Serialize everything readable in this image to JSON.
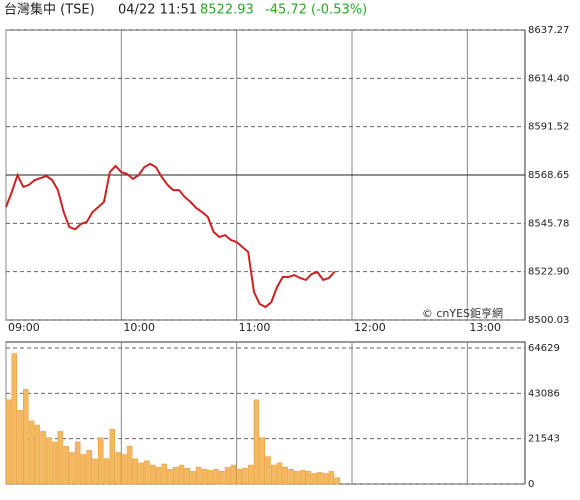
{
  "header": {
    "name": "台灣集中 (TSE)",
    "time": "04/22 11:51",
    "price": "8522.93",
    "change": "-45.72 (-0.53%)"
  },
  "watermark": "© cnYES鉅亨網",
  "chart_data": [
    {
      "type": "line",
      "color": "#cc2222",
      "reference_line": 8568.65,
      "x": [
        0,
        3,
        6,
        9,
        12,
        15,
        18,
        21,
        24,
        27,
        30,
        33,
        36,
        39,
        42,
        45,
        48,
        51,
        54,
        57,
        60,
        63,
        66,
        69,
        72,
        75,
        78,
        81,
        84,
        87,
        90,
        93,
        96,
        99,
        102,
        105,
        108,
        111,
        114,
        117,
        120,
        123,
        126,
        129,
        132,
        135,
        138,
        141,
        144,
        147,
        150,
        153,
        156,
        159,
        162,
        165,
        168,
        171
      ],
      "values": [
        8553.5,
        8560.6,
        8568.6,
        8563,
        8564,
        8566.3,
        8567.2,
        8568.2,
        8566.3,
        8561.5,
        8551.1,
        8544,
        8543,
        8545.5,
        8546.4,
        8551.1,
        8553.5,
        8555.9,
        8570,
        8572.9,
        8570,
        8569.1,
        8566.8,
        8568.6,
        8572.4,
        8573.9,
        8572.4,
        8567.7,
        8564,
        8561.5,
        8561.5,
        8558.2,
        8555.9,
        8553,
        8551.1,
        8548.8,
        8541.7,
        8539.3,
        8540.2,
        8537.9,
        8536.9,
        8534.6,
        8532.2,
        8513.3,
        8507.6,
        8506.2,
        8508.5,
        8515.6,
        8520.4,
        8520.4,
        8521.3,
        8519.9,
        8519,
        8521.8,
        8522.7,
        8519,
        8519.9,
        8522.93
      ],
      "xlim": [
        0,
        270
      ],
      "xticks": [
        {
          "value": 0,
          "label": "09:00"
        },
        {
          "value": 60,
          "label": "10:00"
        },
        {
          "value": 120,
          "label": "11:00"
        },
        {
          "value": 180,
          "label": "12:00"
        },
        {
          "value": 240,
          "label": "13:00"
        }
      ],
      "ylim": [
        8500.03,
        8637.27
      ],
      "yticks": [
        8500.03,
        {
          "value": 8522.9,
          "label": "8522.90"
        },
        8545.78,
        8568.65,
        8591.52,
        {
          "value": 8614.4,
          "label": "8614.40"
        },
        8637.27
      ]
    },
    {
      "type": "bar",
      "color": "#f4b860",
      "x": [
        0,
        3,
        6,
        9,
        12,
        15,
        18,
        21,
        24,
        27,
        30,
        33,
        36,
        39,
        42,
        45,
        48,
        51,
        54,
        57,
        60,
        63,
        66,
        69,
        72,
        75,
        78,
        81,
        84,
        87,
        90,
        93,
        96,
        99,
        102,
        105,
        108,
        111,
        114,
        117,
        120,
        123,
        126,
        129,
        132,
        135,
        138,
        141,
        144,
        147,
        150,
        153,
        156,
        159,
        162,
        165,
        168,
        171
      ],
      "values": [
        40000,
        62000,
        35000,
        45000,
        30000,
        28000,
        25000,
        22000,
        20000,
        25000,
        18000,
        15000,
        20000,
        14000,
        16000,
        12000,
        22000,
        12000,
        26000,
        15000,
        14000,
        18000,
        12000,
        10000,
        11000,
        9000,
        8000,
        9500,
        7000,
        8000,
        9000,
        7500,
        6000,
        8000,
        7000,
        6500,
        7000,
        6000,
        8000,
        9000,
        7000,
        7500,
        9000,
        40000,
        22000,
        13000,
        9000,
        10000,
        8000,
        7000,
        6000,
        6500,
        6000,
        5000,
        5500,
        5000,
        6000,
        3000
      ],
      "xlim": [
        0,
        270
      ],
      "ylim": [
        0,
        67480
      ],
      "yticks": [
        0,
        21543,
        43086,
        64629
      ]
    }
  ]
}
